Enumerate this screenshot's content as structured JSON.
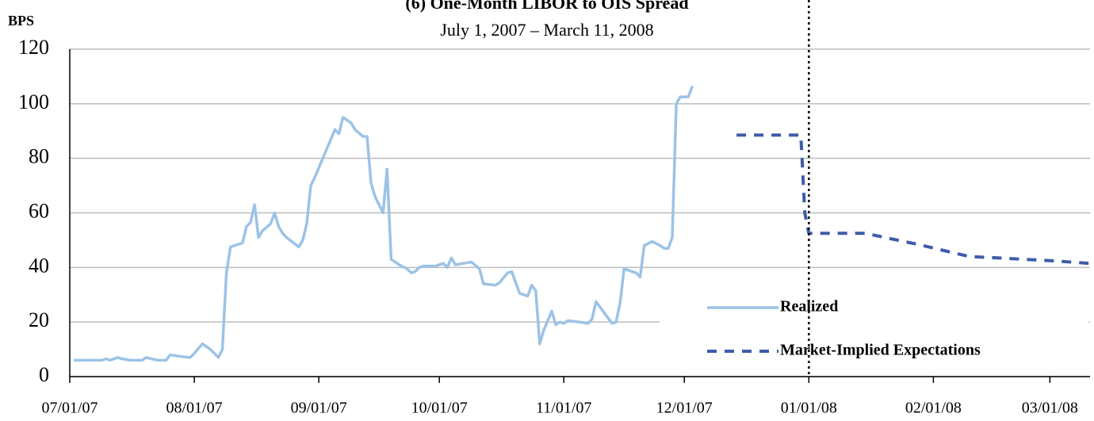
{
  "chart_data": {
    "type": "line",
    "title": "(6) One-Month LIBOR to OIS Spread",
    "subtitle": "July 1, 2007 – March 11, 2008",
    "y_label": "BPS",
    "xlim": [
      "2007-07-01",
      "2008-03-11"
    ],
    "xticks": [
      {
        "value": "2007-07-01",
        "label": "07/01/07"
      },
      {
        "value": "2007-08-01",
        "label": "08/01/07"
      },
      {
        "value": "2007-09-01",
        "label": "09/01/07"
      },
      {
        "value": "2007-10-01",
        "label": "10/01/07"
      },
      {
        "value": "2007-11-01",
        "label": "11/01/07"
      },
      {
        "value": "2007-12-01",
        "label": "12/01/07"
      },
      {
        "value": "2008-01-01",
        "label": "01/01/08"
      },
      {
        "value": "2008-02-01",
        "label": "02/01/08"
      },
      {
        "value": "2008-03-01",
        "label": "03/01/08"
      }
    ],
    "ylim": [
      0,
      120
    ],
    "yticks": [
      0,
      20,
      40,
      60,
      80,
      100,
      120
    ],
    "grid": true,
    "legend": "lower right",
    "vline": "2008-01-01",
    "series": [
      {
        "name": "Realized",
        "color": "#9cc3e6",
        "style": "solid",
        "x": [
          "2007-07-02",
          "2007-07-09",
          "2007-07-10",
          "2007-07-11",
          "2007-07-13",
          "2007-07-14",
          "2007-07-16",
          "2007-07-19",
          "2007-07-20",
          "2007-07-23",
          "2007-07-25",
          "2007-07-26",
          "2007-07-28",
          "2007-07-31",
          "2007-08-01",
          "2007-08-03",
          "2007-08-05",
          "2007-08-07",
          "2007-08-08",
          "2007-08-09",
          "2007-08-10",
          "2007-08-12",
          "2007-08-13",
          "2007-08-14",
          "2007-08-15",
          "2007-08-16",
          "2007-08-17",
          "2007-08-18",
          "2007-08-20",
          "2007-08-21",
          "2007-08-22",
          "2007-08-23",
          "2007-08-24",
          "2007-08-27",
          "2007-08-28",
          "2007-08-29",
          "2007-08-30",
          "2007-08-31",
          "2007-09-02",
          "2007-09-04",
          "2007-09-05",
          "2007-09-06",
          "2007-09-07",
          "2007-09-09",
          "2007-09-10",
          "2007-09-12",
          "2007-09-13",
          "2007-09-14",
          "2007-09-15",
          "2007-09-17",
          "2007-09-18",
          "2007-09-19",
          "2007-09-20",
          "2007-09-21",
          "2007-09-23",
          "2007-09-24",
          "2007-09-25",
          "2007-09-26",
          "2007-09-27",
          "2007-09-30",
          "2007-10-02",
          "2007-10-03",
          "2007-10-04",
          "2007-10-05",
          "2007-10-07",
          "2007-10-09",
          "2007-10-11",
          "2007-10-12",
          "2007-10-15",
          "2007-10-16",
          "2007-10-18",
          "2007-10-19",
          "2007-10-21",
          "2007-10-23",
          "2007-10-24",
          "2007-10-25",
          "2007-10-26",
          "2007-10-27",
          "2007-10-29",
          "2007-10-30",
          "2007-10-31",
          "2007-11-01",
          "2007-11-02",
          "2007-11-05",
          "2007-11-07",
          "2007-11-08",
          "2007-11-09",
          "2007-11-13",
          "2007-11-14",
          "2007-11-15",
          "2007-11-16",
          "2007-11-19",
          "2007-11-20",
          "2007-11-21",
          "2007-11-23",
          "2007-11-25",
          "2007-11-26",
          "2007-11-27",
          "2007-11-28",
          "2007-11-29",
          "2007-11-30",
          "2007-12-02",
          "2007-12-03"
        ],
        "values": [
          6,
          6,
          6.5,
          6,
          7,
          6.5,
          6,
          6,
          7,
          6,
          6,
          8,
          7.5,
          7,
          8.5,
          12,
          10,
          7,
          10,
          38,
          47.5,
          48.5,
          49,
          55,
          56.5,
          63,
          51,
          53.5,
          56,
          60,
          55,
          52.5,
          51,
          47.5,
          50,
          56,
          70,
          73,
          80,
          87,
          90.5,
          89,
          95,
          93,
          90.5,
          88,
          88,
          71,
          66,
          60,
          76,
          43,
          42,
          41,
          39.5,
          38,
          38.5,
          40,
          40.5,
          40.5,
          41.5,
          40,
          43.5,
          41,
          41.5,
          42,
          39.5,
          34,
          33.5,
          34.5,
          38,
          38.5,
          30.5,
          29.5,
          33.5,
          31.5,
          12,
          17,
          24,
          19,
          20,
          19.5,
          20.5,
          20,
          19.5,
          21,
          27.5,
          19.5,
          20,
          27,
          39.5,
          38,
          36.5,
          48,
          49.5,
          48,
          47,
          47,
          51,
          100,
          102.5,
          102.5,
          106.5
        ]
      },
      {
        "name": "Market-Implied Expectations",
        "color": "#3d5ba9",
        "style": "dashed",
        "x": [
          "2007-12-14",
          "2007-12-30",
          "2007-12-31",
          "2008-01-01",
          "2008-01-15",
          "2008-01-28",
          "2008-02-10",
          "2008-02-17",
          "2008-03-01",
          "2008-03-11"
        ],
        "values": [
          88.5,
          88.5,
          60,
          52.5,
          52.5,
          48.5,
          44,
          43.5,
          42.5,
          41.5
        ]
      }
    ]
  }
}
